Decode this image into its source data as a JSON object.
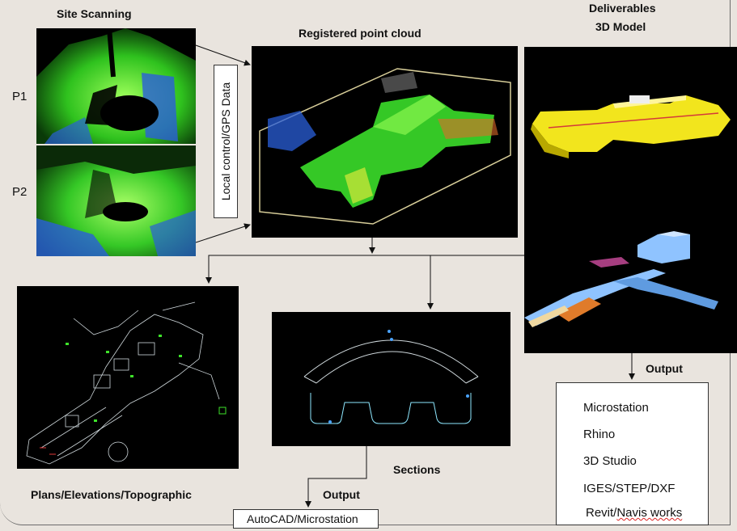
{
  "labels": {
    "site_scanning": "Site Scanning",
    "registered_point_cloud": "Registered point cloud",
    "deliverables": "Deliverables",
    "model_3d": "3D Model",
    "p1": "P1",
    "p2": "P2",
    "local_control": "Local control/GPS Data",
    "plans": "Plans/Elevations/Topographic",
    "sections": "Sections",
    "output_left": "Output",
    "output_right": "Output",
    "autocad": "AutoCAD/Microstation"
  },
  "output_list": [
    {
      "prefix": "Microstation",
      "underlined": ""
    },
    {
      "prefix": "Rhino",
      "underlined": ""
    },
    {
      "prefix": "3D Studio",
      "underlined": ""
    },
    {
      "prefix": "IGES/STEP/DXF",
      "underlined": ""
    },
    {
      "prefix": "Revit/",
      "underlined": "Navis works"
    }
  ],
  "colors": {
    "background": "#e9e4de",
    "scan_green": "#3ee22a",
    "scan_blue": "#2a5fd9",
    "model_yellow": "#f2e51d",
    "pipe_blue": "#8fc3ff",
    "cad_line": "#cfd8dc"
  }
}
